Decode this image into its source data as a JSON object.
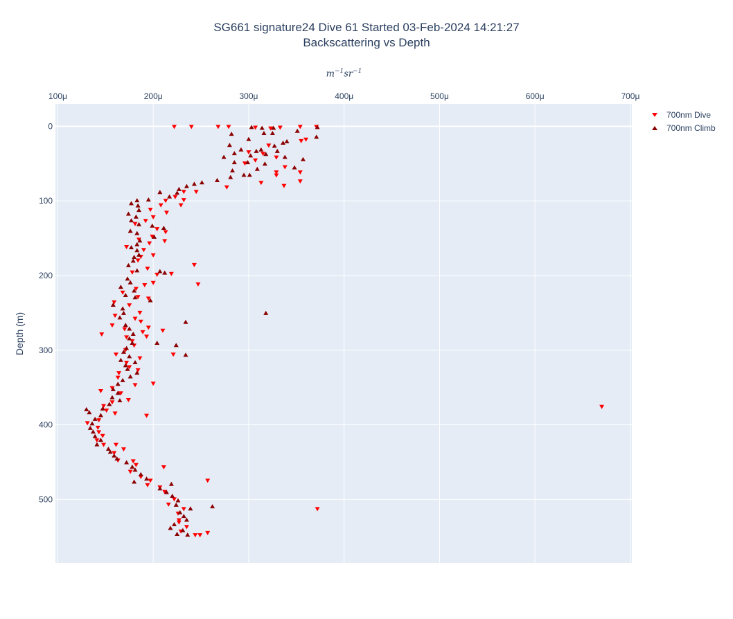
{
  "title": {
    "line1": "SG661 signature24 Dive 61 Started 03-Feb-2024 14:21:27",
    "line2": "Backscattering vs Depth"
  },
  "chart_data": {
    "type": "scatter",
    "title": "SG661 signature24 Dive 61 Started 03-Feb-2024 14:21:27 Backscattering vs Depth",
    "xlabel": "m^-1 sr^-1",
    "ylabel": "Depth (m)",
    "xaxis_side": "top",
    "xlim": [
      9.75e-05,
      0.0007015
    ],
    "ylim": [
      585,
      -30
    ],
    "x_ticks": [
      "100μ",
      "200μ",
      "300μ",
      "400μ",
      "500μ",
      "600μ",
      "700μ"
    ],
    "x_tick_values": [
      0.0001,
      0.0002,
      0.0003,
      0.0004,
      0.0005,
      0.0006,
      0.0007
    ],
    "y_ticks": [
      "0",
      "100",
      "200",
      "300",
      "400",
      "500"
    ],
    "y_tick_values": [
      0,
      100,
      200,
      300,
      400,
      500
    ],
    "grid": true,
    "legend_position": "top-right",
    "colors": {
      "plot_bg": "#e5ecf6",
      "grid": "#ffffff",
      "dive": "#ff0000",
      "climb": "#8b0000"
    },
    "series": [
      {
        "name": "700nm Dive",
        "marker": "triangle-down",
        "color": "#ff0000",
        "points": [
          [
            0.000222,
            1
          ],
          [
            0.00024,
            1
          ],
          [
            0.000268,
            1
          ],
          [
            0.000279,
            1
          ],
          [
            0.000307,
            2
          ],
          [
            0.000323,
            3
          ],
          [
            0.000333,
            2
          ],
          [
            0.000354,
            1
          ],
          [
            0.000371,
            1
          ],
          [
            0.00036,
            18
          ],
          [
            0.000355,
            20
          ],
          [
            0.000321,
            26
          ],
          [
            0.0003,
            35
          ],
          [
            0.000315,
            37
          ],
          [
            0.000329,
            42
          ],
          [
            0.000338,
            55
          ],
          [
            0.000307,
            46
          ],
          [
            0.000296,
            50
          ],
          [
            0.000329,
            62
          ],
          [
            0.000354,
            62
          ],
          [
            0.000329,
            66
          ],
          [
            0.000354,
            74
          ],
          [
            0.000313,
            76
          ],
          [
            0.000337,
            80
          ],
          [
            0.000277,
            82
          ],
          [
            0.000245,
            88
          ],
          [
            0.000232,
            88
          ],
          [
            0.000223,
            95
          ],
          [
            0.000232,
            99
          ],
          [
            0.000213,
            100
          ],
          [
            0.000229,
            106
          ],
          [
            0.000208,
            106
          ],
          [
            0.000197,
            112
          ],
          [
            0.000214,
            116
          ],
          [
            0.0002,
            122
          ],
          [
            0.000192,
            127
          ],
          [
            0.000181,
            131
          ],
          [
            0.000204,
            138
          ],
          [
            0.000213,
            142
          ],
          [
            0.000199,
            148
          ],
          [
            0.000185,
            152
          ],
          [
            0.000212,
            154
          ],
          [
            0.000196,
            157
          ],
          [
            0.000172,
            162
          ],
          [
            0.00019,
            166
          ],
          [
            0.0002,
            173
          ],
          [
            0.000187,
            175
          ],
          [
            0.000184,
            180
          ],
          [
            0.000243,
            186
          ],
          [
            0.000194,
            191
          ],
          [
            0.000178,
            196
          ],
          [
            0.000204,
            199
          ],
          [
            0.000219,
            198
          ],
          [
            0.0002,
            210
          ],
          [
            0.000191,
            213
          ],
          [
            0.000247,
            212
          ],
          [
            0.000182,
            218
          ],
          [
            0.000168,
            223
          ],
          [
            0.000184,
            229
          ],
          [
            0.000195,
            231
          ],
          [
            0.000159,
            236
          ],
          [
            0.000175,
            240
          ],
          [
            0.000186,
            250
          ],
          [
            0.00016,
            254
          ],
          [
            0.000181,
            258
          ],
          [
            0.000187,
            262
          ],
          [
            0.000157,
            267
          ],
          [
            0.000195,
            270
          ],
          [
            0.00017,
            272
          ],
          [
            0.000189,
            276
          ],
          [
            0.00021,
            274
          ],
          [
            0.000146,
            279
          ],
          [
            0.000172,
            283
          ],
          [
            0.000193,
            282
          ],
          [
            0.000178,
            288
          ],
          [
            0.00018,
            294
          ],
          [
            0.000171,
            300
          ],
          [
            0.000161,
            306
          ],
          [
            0.000221,
            306
          ],
          [
            0.000186,
            311
          ],
          [
            0.000172,
            317
          ],
          [
            0.000175,
            323
          ],
          [
            0.000184,
            327
          ],
          [
            0.000164,
            331
          ],
          [
            0.000163,
            337
          ],
          [
            0.0002,
            345
          ],
          [
            0.000181,
            347
          ],
          [
            0.000157,
            351
          ],
          [
            0.000145,
            355
          ],
          [
            0.000166,
            358
          ],
          [
            0.000174,
            367
          ],
          [
            0.000157,
            370
          ],
          [
            0.000148,
            375
          ],
          [
            0.00067,
            376
          ],
          [
            0.000151,
            381
          ],
          [
            0.00016,
            385
          ],
          [
            0.000193,
            388
          ],
          [
            0.000143,
            394
          ],
          [
            0.000131,
            398
          ],
          [
            0.000142,
            404
          ],
          [
            0.000143,
            410
          ],
          [
            0.000147,
            415
          ],
          [
            0.000141,
            421
          ],
          [
            0.000148,
            427
          ],
          [
            0.000161,
            427
          ],
          [
            0.000169,
            433
          ],
          [
            0.000159,
            438
          ],
          [
            0.000163,
            448
          ],
          [
            0.000179,
            449
          ],
          [
            0.000182,
            454
          ],
          [
            0.000211,
            457
          ],
          [
            0.000176,
            463
          ],
          [
            0.000187,
            470
          ],
          [
            0.000197,
            475
          ],
          [
            0.000257,
            475
          ],
          [
            0.000194,
            481
          ],
          [
            0.000207,
            484
          ],
          [
            0.000212,
            490
          ],
          [
            0.000222,
            500
          ],
          [
            0.000216,
            507
          ],
          [
            0.000232,
            513
          ],
          [
            0.000372,
            513
          ],
          [
            0.000226,
            519
          ],
          [
            0.000227,
            528
          ],
          [
            0.000227,
            531
          ],
          [
            0.000235,
            537
          ],
          [
            0.000229,
            543
          ],
          [
            0.000257,
            545
          ],
          [
            0.000244,
            548
          ],
          [
            0.000249,
            548
          ]
        ]
      },
      {
        "name": "700nm Climb",
        "marker": "triangle-up",
        "color": "#8b0000",
        "points": [
          [
            0.000303,
            1
          ],
          [
            0.000314,
            2
          ],
          [
            0.000326,
            2
          ],
          [
            0.000351,
            6
          ],
          [
            0.000372,
            1
          ],
          [
            0.000325,
            9
          ],
          [
            0.000316,
            9
          ],
          [
            0.000371,
            14
          ],
          [
            0.0003,
            17
          ],
          [
            0.00034,
            20
          ],
          [
            0.00028,
            25
          ],
          [
            0.000327,
            26
          ],
          [
            0.000282,
            10
          ],
          [
            0.000336,
            22
          ],
          [
            0.000292,
            31
          ],
          [
            0.000313,
            31
          ],
          [
            0.00033,
            33
          ],
          [
            0.000308,
            33
          ],
          [
            0.000285,
            36
          ],
          [
            0.000318,
            37
          ],
          [
            0.000302,
            39
          ],
          [
            0.000274,
            41
          ],
          [
            0.000338,
            41
          ],
          [
            0.000357,
            44
          ],
          [
            0.000285,
            48
          ],
          [
            0.000299,
            48
          ],
          [
            0.000317,
            50
          ],
          [
            0.000348,
            55
          ],
          [
            0.000283,
            59
          ],
          [
            0.000309,
            57
          ],
          [
            0.000301,
            65
          ],
          [
            0.000295,
            65
          ],
          [
            0.000281,
            68
          ],
          [
            0.000267,
            72
          ],
          [
            0.000251,
            75
          ],
          [
            0.000243,
            77
          ],
          [
            0.000235,
            80
          ],
          [
            0.000227,
            84
          ],
          [
            0.000207,
            88
          ],
          [
            0.000225,
            89
          ],
          [
            0.000217,
            94
          ],
          [
            0.000195,
            98
          ],
          [
            0.000183,
            99
          ],
          [
            0.000177,
            103
          ],
          [
            0.000184,
            106
          ],
          [
            0.000185,
            112
          ],
          [
            0.000174,
            117
          ],
          [
            0.000182,
            121
          ],
          [
            0.000177,
            126
          ],
          [
            0.000185,
            131
          ],
          [
            0.000199,
            133
          ],
          [
            0.000211,
            136
          ],
          [
            0.000176,
            140
          ],
          [
            0.000183,
            143
          ],
          [
            0.000201,
            148
          ],
          [
            0.000186,
            153
          ],
          [
            0.000183,
            158
          ],
          [
            0.000177,
            162
          ],
          [
            0.000183,
            166
          ],
          [
            0.000185,
            172
          ],
          [
            0.00018,
            175
          ],
          [
            0.000179,
            180
          ],
          [
            0.000174,
            186
          ],
          [
            0.000183,
            193
          ],
          [
            0.000207,
            194
          ],
          [
            0.000212,
            196
          ],
          [
            0.000173,
            204
          ],
          [
            0.000176,
            209
          ],
          [
            0.000166,
            215
          ],
          [
            0.00018,
            220
          ],
          [
            0.000171,
            226
          ],
          [
            0.000181,
            229
          ],
          [
            0.000197,
            233
          ],
          [
            0.000158,
            239
          ],
          [
            0.000168,
            244
          ],
          [
            0.000169,
            250
          ],
          [
            0.000318,
            250
          ],
          [
            0.000165,
            256
          ],
          [
            0.000234,
            262
          ],
          [
            0.000171,
            266
          ],
          [
            0.000175,
            271
          ],
          [
            0.000179,
            278
          ],
          [
            0.000175,
            284
          ],
          [
            0.000178,
            290
          ],
          [
            0.000204,
            290
          ],
          [
            0.000224,
            293
          ],
          [
            0.000172,
            297
          ],
          [
            0.000169,
            302
          ],
          [
            0.000234,
            306
          ],
          [
            0.000175,
            308
          ],
          [
            0.000166,
            313
          ],
          [
            0.000181,
            316
          ],
          [
            0.000171,
            320
          ],
          [
            0.000173,
            325
          ],
          [
            0.000183,
            330
          ],
          [
            0.000176,
            335
          ],
          [
            0.000168,
            340
          ],
          [
            0.000163,
            345
          ],
          [
            0.000158,
            352
          ],
          [
            0.000163,
            357
          ],
          [
            0.000157,
            363
          ],
          [
            0.000165,
            367
          ],
          [
            0.000154,
            372
          ],
          [
            0.000147,
            378
          ],
          [
            0.00013,
            379
          ],
          [
            0.000133,
            383
          ],
          [
            0.000145,
            387
          ],
          [
            0.000139,
            392
          ],
          [
            0.000136,
            398
          ],
          [
            0.000134,
            404
          ],
          [
            0.000137,
            409
          ],
          [
            0.000139,
            415
          ],
          [
            0.000145,
            420
          ],
          [
            0.000141,
            426
          ],
          [
            0.000153,
            432
          ],
          [
            0.000155,
            436
          ],
          [
            0.000159,
            441
          ],
          [
            0.000162,
            445
          ],
          [
            0.000172,
            450
          ],
          [
            0.000178,
            456
          ],
          [
            0.000181,
            460
          ],
          [
            0.000187,
            466
          ],
          [
            0.000193,
            472
          ],
          [
            0.00018,
            476
          ],
          [
            0.000219,
            479
          ],
          [
            0.000207,
            485
          ],
          [
            0.000214,
            490
          ],
          [
            0.00022,
            495
          ],
          [
            0.000226,
            501
          ],
          [
            0.000224,
            507
          ],
          [
            0.000239,
            512
          ],
          [
            0.000262,
            509
          ],
          [
            0.000228,
            517
          ],
          [
            0.000232,
            522
          ],
          [
            0.000235,
            527
          ],
          [
            0.000222,
            533
          ],
          [
            0.000218,
            538
          ],
          [
            0.000231,
            541
          ],
          [
            0.000225,
            546
          ],
          [
            0.000236,
            547
          ]
        ]
      }
    ]
  }
}
